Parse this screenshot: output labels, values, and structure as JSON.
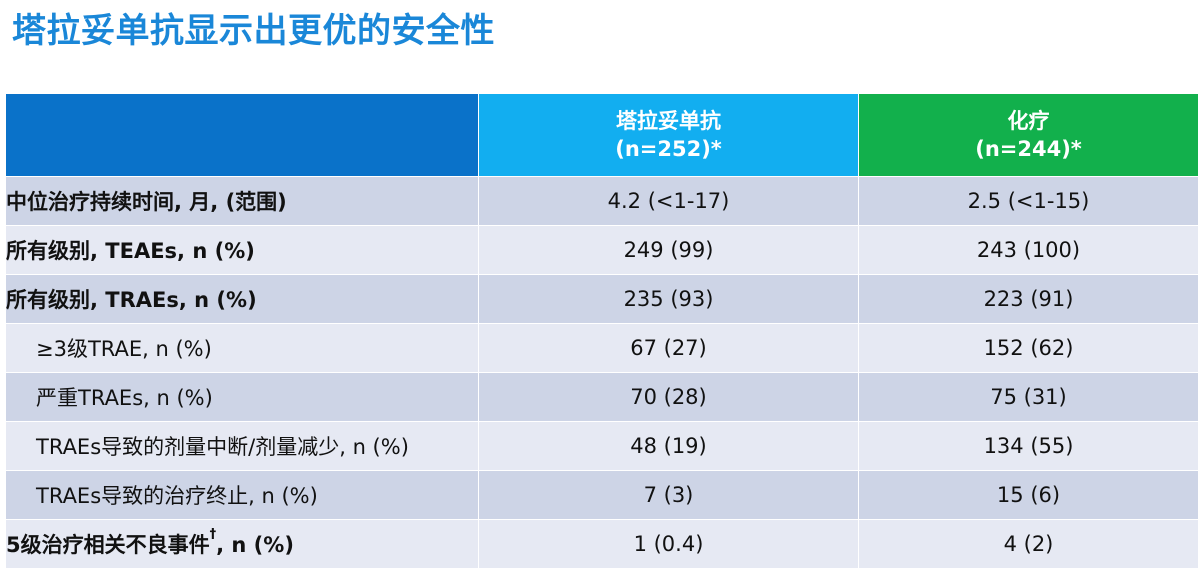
{
  "title": "塔拉妥单抗显示出更优的安全性",
  "header": {
    "label_col": "",
    "col1": {
      "name": "塔拉妥单抗",
      "n": "(n=252)*"
    },
    "col2": {
      "name": "化疗",
      "n": "(n=244)*"
    }
  },
  "colors": {
    "title": "#1a87d8",
    "header_label_bg": "#0a72c9",
    "header_drug_bg": "#12aef0",
    "header_chemo_bg": "#12b04c",
    "row_odd_bg": "#cdd4e6",
    "row_even_bg": "#e6e9f3"
  },
  "rows": [
    {
      "label": "中位治疗持续时间, 月, (范围)",
      "label_sup": "",
      "label_after": "",
      "col1": "4.2 (<1-17)",
      "col2": "2.5 (<1-15)"
    },
    {
      "label": "所有级别, TEAEs, n (%)",
      "label_sup": "",
      "label_after": "",
      "col1": "249 (99)",
      "col2": "243 (100)"
    },
    {
      "label": "所有级别, TRAEs, n (%)",
      "label_sup": "",
      "label_after": "",
      "col1": "235 (93)",
      "col2": "223 (91)"
    },
    {
      "label": "≥3级TRAE, n (%)",
      "label_sup": "",
      "label_after": "",
      "col1": "67 (27)",
      "col2": "152 (62)"
    },
    {
      "label": "严重TRAEs, n (%)",
      "label_sup": "",
      "label_after": "",
      "col1": "70 (28)",
      "col2": "75 (31)"
    },
    {
      "label": "TRAEs导致的剂量中断/剂量减少, n (%)",
      "label_sup": "",
      "label_after": "",
      "col1": "48 (19)",
      "col2": "134 (55)"
    },
    {
      "label": "TRAEs导致的治疗终止, n (%)",
      "label_sup": "",
      "label_after": "",
      "col1": "7 (3)",
      "col2": "15 (6)"
    },
    {
      "label": "5级治疗相关不良事件",
      "label_sup": "†",
      "label_after": ", n (%)",
      "col1": "1 (0.4)",
      "col2": "4 (2)"
    }
  ]
}
